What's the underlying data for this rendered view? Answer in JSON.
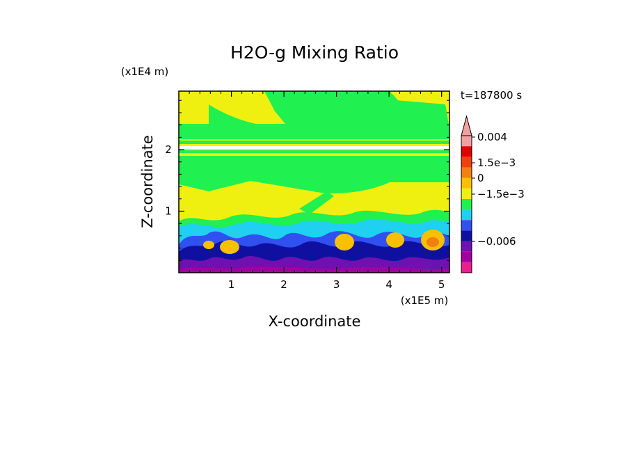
{
  "chart_data": {
    "type": "heatmap",
    "title": "H2O-g Mixing Ratio",
    "xlabel": "X-coordinate",
    "ylabel": "Z-coordinate",
    "x_scale_label": "(x1E5 m)",
    "y_scale_label": "(x1E4 m)",
    "time_label": "t=187800 s",
    "xlim": [
      0,
      5.15
    ],
    "ylim": [
      0,
      2.95
    ],
    "x_ticks": [
      {
        "value": 1,
        "label": "1"
      },
      {
        "value": 2,
        "label": "2"
      },
      {
        "value": 3,
        "label": "3"
      },
      {
        "value": 4,
        "label": "4"
      },
      {
        "value": 5,
        "label": "5"
      }
    ],
    "y_ticks": [
      {
        "value": 1,
        "label": "1"
      },
      {
        "value": 2,
        "label": "2"
      }
    ],
    "colorbar": {
      "levels": [
        {
          "color": "#e8208e"
        },
        {
          "color": "#a000a0"
        },
        {
          "color": "#7010b0"
        },
        {
          "color": "#1010a0"
        },
        {
          "color": "#3050f0"
        },
        {
          "color": "#20d0f0"
        },
        {
          "color": "#20f050"
        },
        {
          "color": "#f0f010"
        },
        {
          "color": "#f8c000"
        },
        {
          "color": "#f08010"
        },
        {
          "color": "#f04010"
        },
        {
          "color": "#e00000"
        },
        {
          "color": "#f0a0a0"
        }
      ],
      "labels": [
        {
          "value": -0.006,
          "label": "−0.006"
        },
        {
          "value": -0.0015,
          "label": "−1.5e−3"
        },
        {
          "value": 0,
          "label": "0"
        },
        {
          "value": 0.0015,
          "label": "1.5e−3"
        },
        {
          "value": 0.004,
          "label": "0.004"
        }
      ]
    }
  }
}
